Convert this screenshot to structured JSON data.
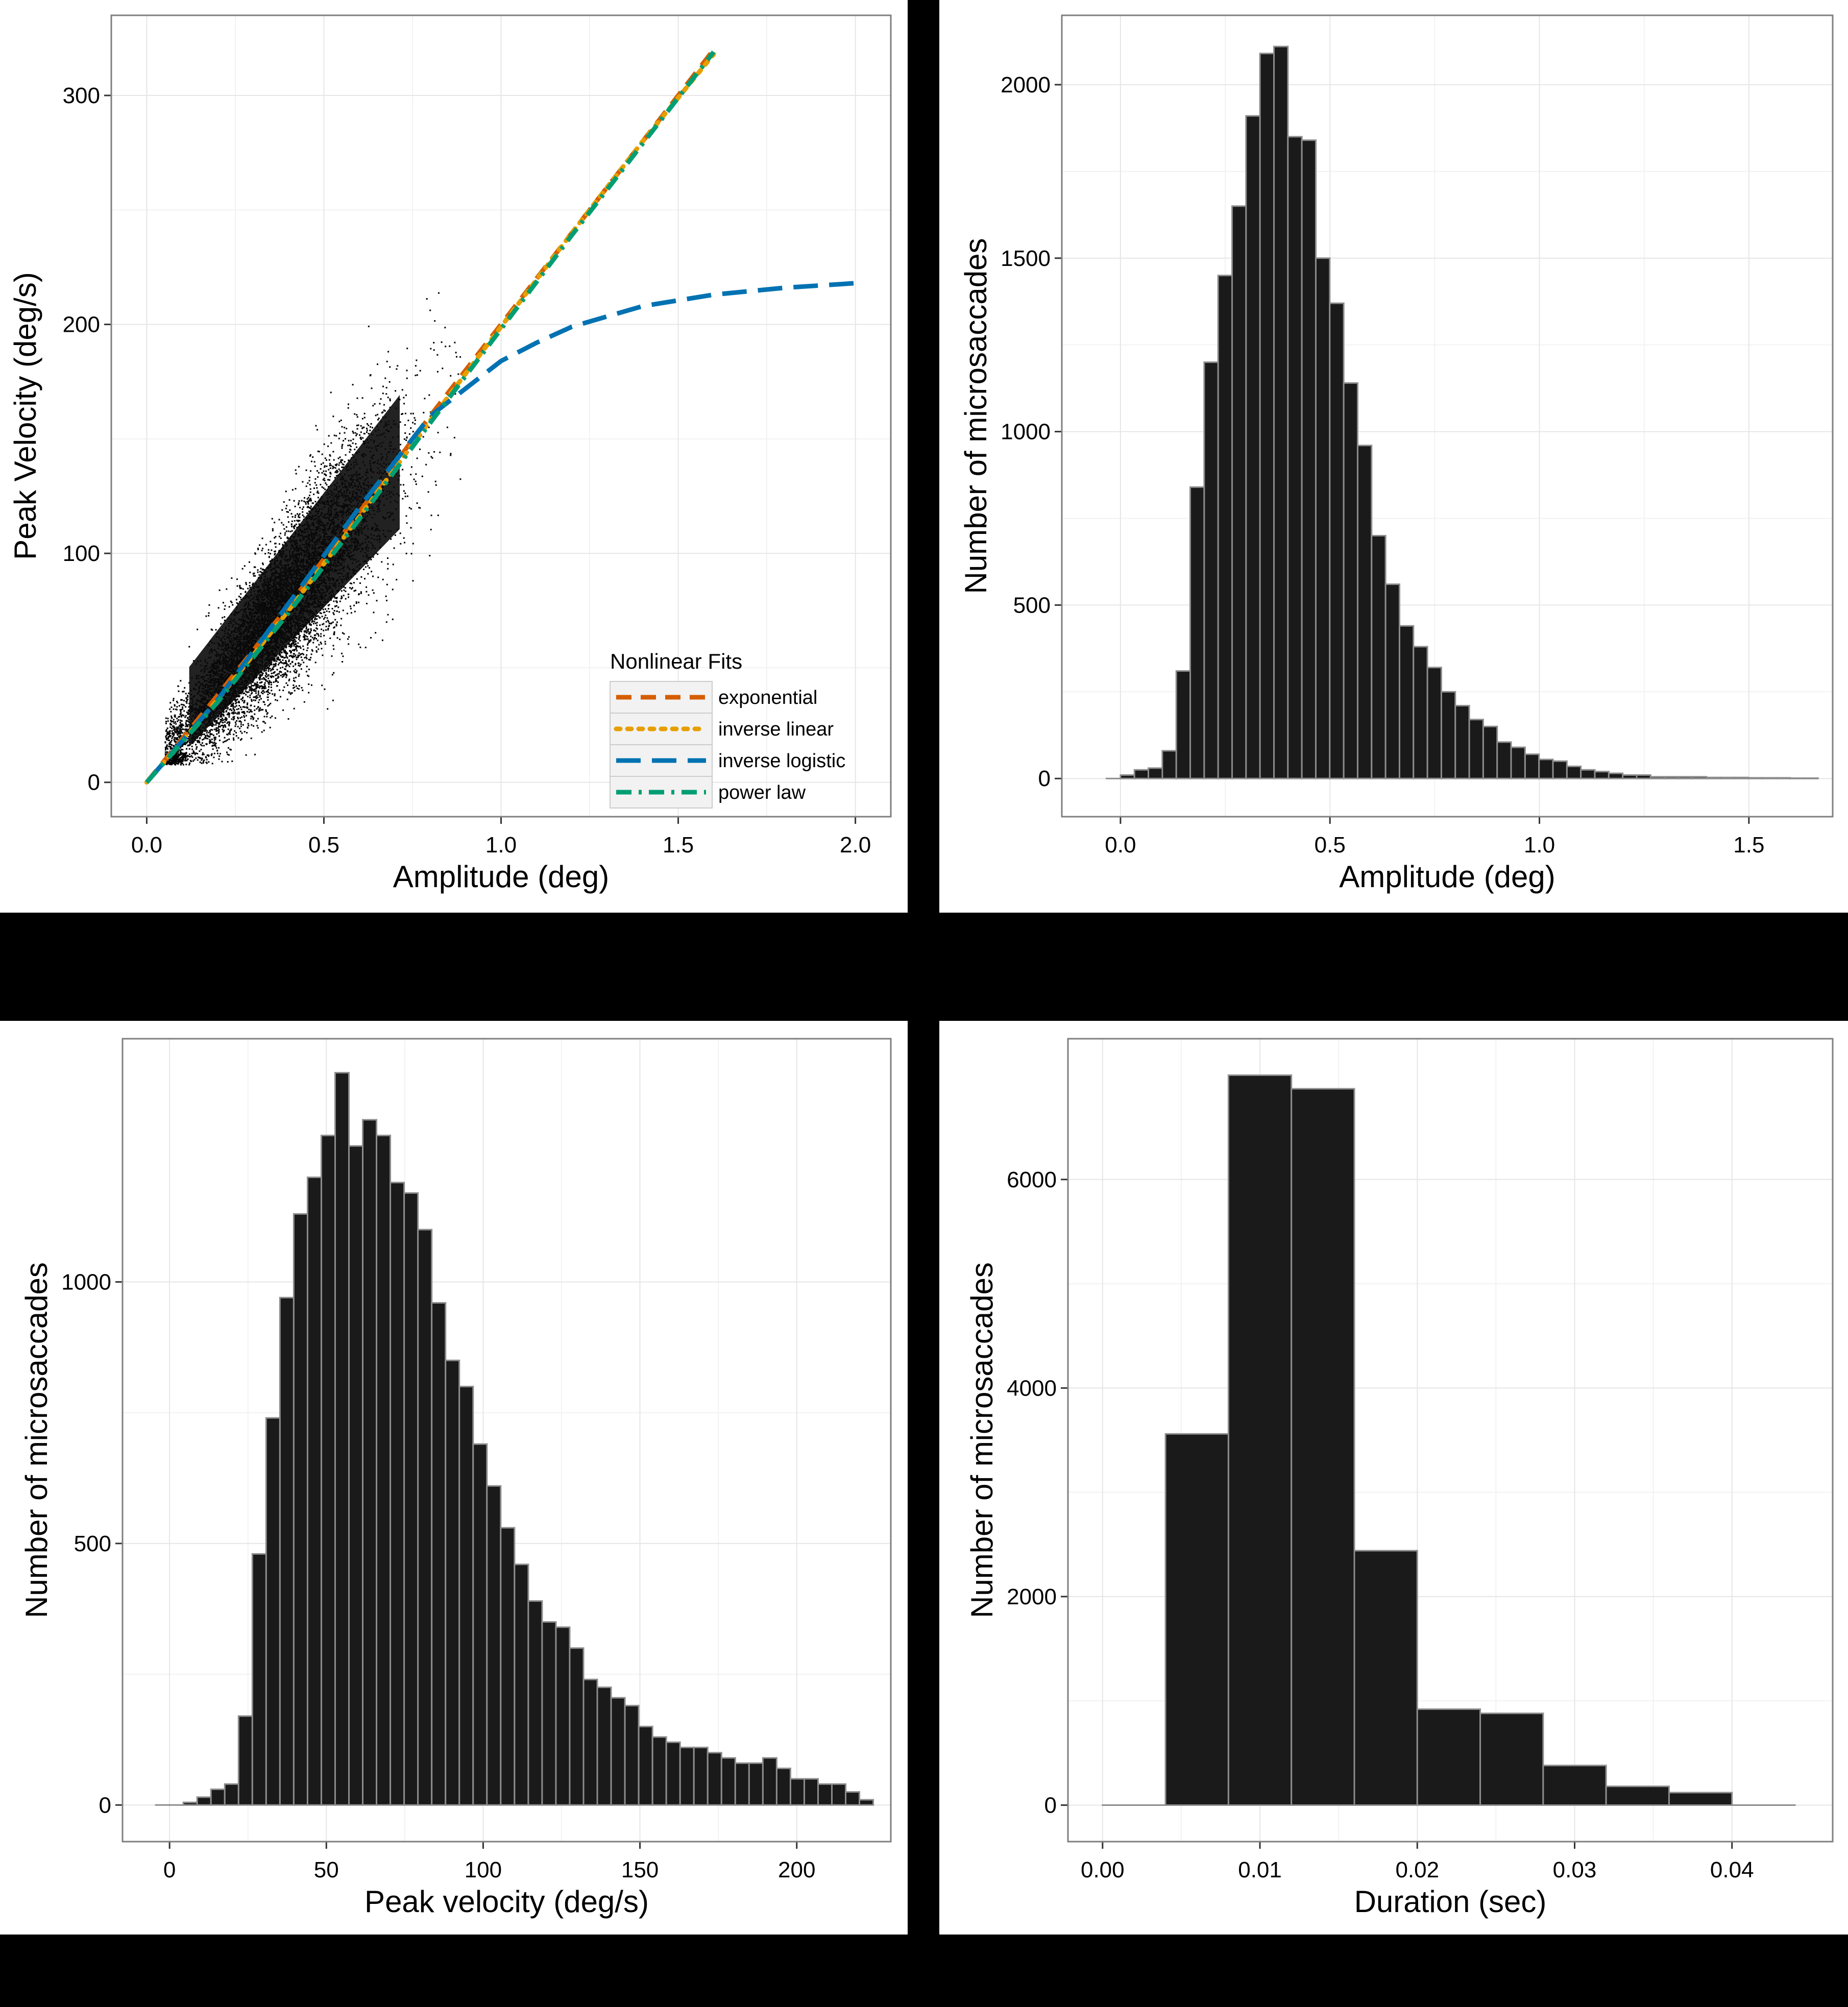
{
  "figure": {
    "background": "#000000",
    "panel_background": "#ffffff",
    "bar_fill": "#1a1a1a",
    "bar_stroke": "#8c8c8c"
  },
  "chart_data": [
    {
      "type": "scatter",
      "xlabel": "Amplitude (deg)",
      "ylabel": "Peak Velocity (deg/s)",
      "xlim": [
        -0.1,
        2.1
      ],
      "ylim": [
        -15,
        335
      ],
      "xticks": [
        0.0,
        0.5,
        1.0,
        1.5,
        2.0
      ],
      "xtick_labels": [
        "0.0",
        "0.5",
        "1.0",
        "1.5",
        "2.0"
      ],
      "yticks": [
        0,
        100,
        200,
        300
      ],
      "ytick_labels": [
        "0",
        "100",
        "200",
        "300"
      ],
      "scatter_description": "Dense cloud of ~20000 microsaccades, amplitude 0.05-1.35 deg, peak velocity 10-215 deg/s, roughly linear main sequence",
      "series": [
        {
          "name": "exponential",
          "color": "#d55e00",
          "dash": "long",
          "x": [
            0,
            0.2,
            0.4,
            0.6,
            0.8,
            1.0,
            1.2,
            1.4,
            1.6
          ],
          "y": [
            0,
            38,
            77,
            118,
            160,
            200,
            240,
            280,
            320
          ]
        },
        {
          "name": "inverse linear",
          "color": "#e69f00",
          "dash": "dot",
          "x": [
            0,
            0.2,
            0.4,
            0.6,
            0.8,
            1.0,
            1.2,
            1.4,
            1.6
          ],
          "y": [
            0,
            36,
            75,
            116,
            158,
            199,
            240,
            280,
            318
          ]
        },
        {
          "name": "inverse logistic",
          "color": "#0072b2",
          "dash": "longer",
          "x": [
            0,
            0.2,
            0.4,
            0.6,
            0.8,
            1.0,
            1.1,
            1.2,
            1.4,
            1.6,
            1.8,
            2.0
          ],
          "y": [
            0,
            36,
            78,
            120,
            160,
            184,
            192,
            199,
            208,
            213,
            216,
            218
          ]
        },
        {
          "name": "power law",
          "color": "#009e73",
          "dash": "dotdash",
          "x": [
            0,
            0.2,
            0.4,
            0.6,
            0.8,
            1.0,
            1.2,
            1.4,
            1.6
          ],
          "y": [
            0,
            35,
            74,
            115,
            157,
            198,
            239,
            279,
            319
          ]
        }
      ],
      "legend": {
        "title": "Nonlinear Fits",
        "position": "bottom-right",
        "entries": [
          "exponential",
          "inverse linear",
          "inverse logistic",
          "power law"
        ]
      }
    },
    {
      "type": "bar",
      "xlabel": "Amplitude (deg)",
      "ylabel": "Number of microsaccades",
      "xlim": [
        -0.14,
        1.7
      ],
      "ylim": [
        -110,
        2200
      ],
      "xticks": [
        0.0,
        0.5,
        1.0,
        1.5
      ],
      "xtick_labels": [
        "0.0",
        "0.5",
        "1.0",
        "1.5"
      ],
      "yticks": [
        0,
        500,
        1000,
        1500,
        2000
      ],
      "ytick_labels": [
        "0",
        "500",
        "1000",
        "1500",
        "2000"
      ],
      "bin_start": -0.0333,
      "bin_width": 0.0333,
      "values": [
        0,
        10,
        25,
        30,
        80,
        310,
        840,
        1200,
        1450,
        1650,
        1910,
        2090,
        2110,
        1850,
        1840,
        1500,
        1370,
        1140,
        960,
        700,
        560,
        440,
        380,
        320,
        250,
        210,
        170,
        150,
        105,
        90,
        70,
        55,
        50,
        35,
        25,
        20,
        15,
        10,
        10,
        5,
        5,
        5,
        5,
        3,
        3,
        3,
        2,
        2,
        2,
        1,
        1
      ]
    },
    {
      "type": "bar",
      "xlabel": "Peak velocity (deg/s)",
      "ylabel": "Number of microsaccades",
      "xlim": [
        -15,
        230
      ],
      "ylim": [
        -70,
        1465
      ],
      "xticks": [
        0,
        50,
        100,
        150,
        200
      ],
      "xtick_labels": [
        "0",
        "50",
        "100",
        "150",
        "200"
      ],
      "yticks": [
        0,
        500,
        1000
      ],
      "ytick_labels": [
        "0",
        "500",
        "1000"
      ],
      "bin_start": -4.4,
      "bin_width": 4.4,
      "values": [
        0,
        0,
        5,
        15,
        30,
        40,
        170,
        480,
        740,
        970,
        1130,
        1200,
        1280,
        1400,
        1260,
        1310,
        1280,
        1190,
        1170,
        1100,
        960,
        850,
        800,
        690,
        610,
        530,
        460,
        390,
        350,
        340,
        300,
        240,
        225,
        205,
        190,
        150,
        130,
        120,
        110,
        110,
        100,
        90,
        80,
        80,
        90,
        70,
        50,
        50,
        40,
        40,
        25,
        10
      ]
    },
    {
      "type": "bar",
      "xlabel": "Duration (sec)",
      "ylabel": "Number of microsaccades",
      "xlim": [
        -0.0022,
        0.0464
      ],
      "ylim": [
        -350,
        7350
      ],
      "xticks": [
        0.0,
        0.01,
        0.02,
        0.03,
        0.04
      ],
      "xtick_labels": [
        "0.00",
        "0.01",
        "0.02",
        "0.03",
        "0.04"
      ],
      "yticks": [
        0,
        2000,
        4000,
        6000
      ],
      "ytick_labels": [
        "0",
        "2000",
        "4000",
        "6000"
      ],
      "bin_start": 0.0,
      "bin_width": 0.004,
      "values": [
        0,
        3560,
        7000,
        6870,
        2440,
        920,
        880,
        380,
        180,
        120,
        0
      ]
    }
  ]
}
